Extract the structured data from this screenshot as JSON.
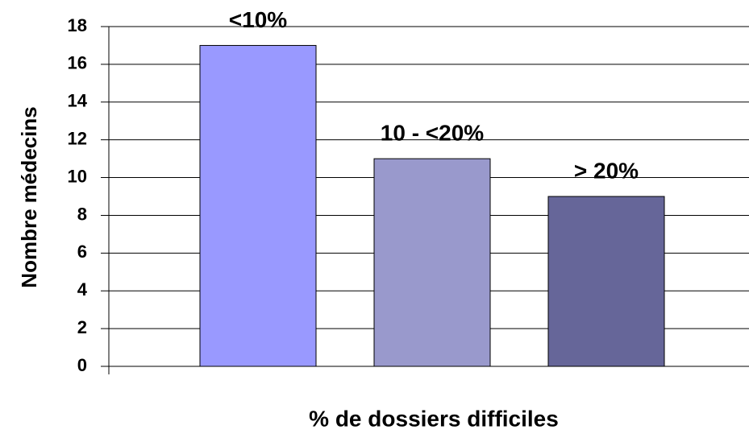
{
  "chart_data": {
    "type": "bar",
    "x_label": "% de dossiers difficiles",
    "y_label": "Nombre médecins",
    "categories": [
      "<10%",
      "10 - <20%",
      "> 20%"
    ],
    "values": [
      17,
      11,
      9
    ],
    "colors": [
      "#9999ff",
      "#9999cc",
      "#666699"
    ],
    "ylim": [
      0,
      18
    ],
    "yticks": [
      0,
      2,
      4,
      6,
      8,
      10,
      12,
      14,
      16,
      18
    ],
    "grid": true
  }
}
